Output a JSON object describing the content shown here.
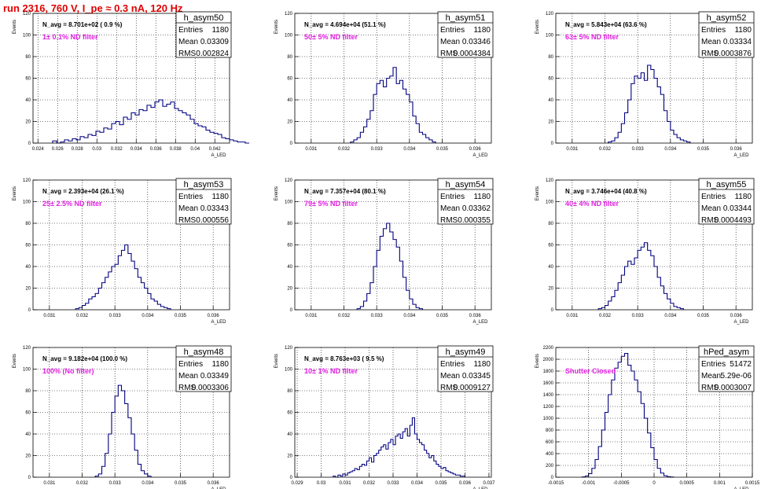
{
  "page_title": "run 2316,   760 V, I_pe ≈ 0.3 nA, 120 Hz",
  "colors": {
    "title": "#e00000",
    "hist_line": "#000080",
    "annotation": "#e020e0",
    "grid": "#000000",
    "frame": "#000000"
  },
  "stat_labels": {
    "entries": "Entries",
    "mean": "Mean",
    "rms": "RMS"
  },
  "chart_data": [
    {
      "type": "bar",
      "title": "h_asym50",
      "xlabel": "A_LED",
      "ylabel": "Events",
      "navg": "N_avg = 8.701e+02 ( 0.9 %)",
      "filter": "1± 0.1% ND filter",
      "entries": "1180",
      "mean": "0.03309",
      "rms": "0.002824",
      "xlim": [
        0.0235,
        0.0435
      ],
      "ylim": [
        0,
        120
      ],
      "grid": true,
      "xticks": [
        0.024,
        0.026,
        0.028,
        0.03,
        0.032,
        0.034,
        0.036,
        0.038,
        0.04,
        0.042
      ],
      "xticklabels": [
        "0.024",
        "0.026",
        "0.028",
        "0.03",
        "0.032",
        "0.034",
        "0.036",
        "0.038",
        "0.04",
        "0.042"
      ],
      "yticks": [
        0,
        20,
        40,
        60,
        80,
        100,
        120
      ],
      "yticklabels": [
        "0",
        "20",
        "40",
        "60",
        "80",
        "100",
        "120"
      ],
      "bin_start": 0.0255,
      "bin_width": 0.0004,
      "values": [
        2,
        0,
        1,
        3,
        2,
        4,
        3,
        6,
        5,
        8,
        7,
        11,
        10,
        14,
        13,
        18,
        20,
        17,
        24,
        22,
        28,
        26,
        31,
        30,
        35,
        33,
        38,
        40,
        34,
        36,
        38,
        32,
        30,
        28,
        26,
        22,
        18,
        16,
        15,
        12,
        10,
        9,
        8,
        5,
        4,
        3,
        2,
        1,
        1,
        0
      ]
    },
    {
      "type": "bar",
      "title": "h_asym51",
      "xlabel": "A_LED",
      "ylabel": "Events",
      "navg": "N_avg = 4.694e+04 (51.1 %)",
      "filter": "50± 5% ND filter",
      "entries": "1180",
      "mean": "0.03346",
      "rms": "0.0004384",
      "xlim": [
        0.0305,
        0.0365
      ],
      "ylim": [
        0,
        120
      ],
      "grid": true,
      "xticks": [
        0.031,
        0.032,
        0.033,
        0.034,
        0.035,
        0.036
      ],
      "xticklabels": [
        "0.031",
        "0.032",
        "0.033",
        "0.034",
        "0.035",
        "0.036"
      ],
      "yticks": [
        0,
        20,
        40,
        60,
        80,
        100,
        120
      ],
      "yticklabels": [
        "0",
        "20",
        "40",
        "60",
        "80",
        "100",
        "120"
      ],
      "bin_start": 0.0322,
      "bin_width": 0.0001,
      "values": [
        1,
        3,
        5,
        10,
        15,
        22,
        30,
        45,
        55,
        58,
        52,
        60,
        62,
        70,
        55,
        58,
        50,
        45,
        38,
        25,
        18,
        10,
        8,
        5,
        3,
        1
      ]
    },
    {
      "type": "bar",
      "title": "h_asym52",
      "xlabel": "A_LED",
      "ylabel": "Events",
      "navg": "N_avg = 5.843e+04 (63.6 %)",
      "filter": "63± 5% ND filter",
      "entries": "1180",
      "mean": "0.03334",
      "rms": "0.0003876",
      "xlim": [
        0.0305,
        0.0365
      ],
      "ylim": [
        0,
        120
      ],
      "grid": true,
      "xticks": [
        0.031,
        0.032,
        0.033,
        0.034,
        0.035,
        0.036
      ],
      "xticklabels": [
        "0.031",
        "0.032",
        "0.033",
        "0.034",
        "0.035",
        "0.036"
      ],
      "yticks": [
        0,
        20,
        40,
        60,
        80,
        100,
        120
      ],
      "yticklabels": [
        "0",
        "20",
        "40",
        "60",
        "80",
        "100",
        "120"
      ],
      "bin_start": 0.0321,
      "bin_width": 0.0001,
      "values": [
        1,
        2,
        5,
        10,
        18,
        28,
        40,
        55,
        62,
        60,
        65,
        58,
        72,
        68,
        60,
        52,
        45,
        30,
        20,
        12,
        8,
        5,
        3,
        2,
        1
      ]
    },
    {
      "type": "bar",
      "title": "h_asym53",
      "xlabel": "A_LED",
      "ylabel": "Events",
      "navg": "N_avg = 2.393e+04 (26.1 %)",
      "filter": "25± 2.5% ND filter",
      "entries": "1180",
      "mean": "0.03343",
      "rms": "0.000556",
      "xlim": [
        0.0305,
        0.0365
      ],
      "ylim": [
        0,
        120
      ],
      "grid": true,
      "xticks": [
        0.031,
        0.032,
        0.033,
        0.034,
        0.035,
        0.036
      ],
      "xticklabels": [
        "0.031",
        "0.032",
        "0.033",
        "0.034",
        "0.035",
        "0.036"
      ],
      "yticks": [
        0,
        20,
        40,
        60,
        80,
        100,
        120
      ],
      "yticklabels": [
        "0",
        "20",
        "40",
        "60",
        "80",
        "100",
        "120"
      ],
      "bin_start": 0.0318,
      "bin_width": 0.0001,
      "values": [
        1,
        2,
        4,
        6,
        10,
        12,
        15,
        20,
        25,
        30,
        35,
        40,
        42,
        50,
        55,
        60,
        52,
        45,
        38,
        30,
        25,
        20,
        15,
        10,
        8,
        5,
        3,
        2,
        1
      ]
    },
    {
      "type": "bar",
      "title": "h_asym54",
      "xlabel": "A_LED",
      "ylabel": "Events",
      "navg": "N_avg = 7.357e+04 (80.1 %)",
      "filter": "79± 5% ND filter",
      "entries": "1180",
      "mean": "0.03362",
      "rms": "0.000355",
      "xlim": [
        0.0305,
        0.0365
      ],
      "ylim": [
        0,
        120
      ],
      "grid": true,
      "xticks": [
        0.031,
        0.032,
        0.033,
        0.034,
        0.035,
        0.036
      ],
      "xticklabels": [
        "0.031",
        "0.032",
        "0.033",
        "0.034",
        "0.035",
        "0.036"
      ],
      "yticks": [
        0,
        20,
        40,
        60,
        80,
        100,
        120
      ],
      "yticklabels": [
        "0",
        "20",
        "40",
        "60",
        "80",
        "100",
        "120"
      ],
      "bin_start": 0.0324,
      "bin_width": 0.0001,
      "values": [
        1,
        3,
        8,
        15,
        25,
        40,
        55,
        68,
        75,
        80,
        72,
        65,
        58,
        45,
        30,
        18,
        10,
        5,
        2,
        1
      ]
    },
    {
      "type": "bar",
      "title": "h_asym55",
      "xlabel": "A_LED",
      "ylabel": "Events",
      "navg": "N_avg = 3.746e+04 (40.8 %)",
      "filter": "40± 4% ND filter",
      "entries": "1180",
      "mean": "0.03344",
      "rms": "0.0004493",
      "xlim": [
        0.0305,
        0.0365
      ],
      "ylim": [
        0,
        120
      ],
      "grid": true,
      "xticks": [
        0.031,
        0.032,
        0.033,
        0.034,
        0.035,
        0.036
      ],
      "xticklabels": [
        "0.031",
        "0.032",
        "0.033",
        "0.034",
        "0.035",
        "0.036"
      ],
      "yticks": [
        0,
        20,
        40,
        60,
        80,
        100,
        120
      ],
      "yticklabels": [
        "0",
        "20",
        "40",
        "60",
        "80",
        "100",
        "120"
      ],
      "bin_start": 0.0318,
      "bin_width": 0.0001,
      "values": [
        1,
        2,
        4,
        8,
        12,
        18,
        25,
        32,
        40,
        45,
        42,
        48,
        55,
        58,
        62,
        55,
        50,
        40,
        30,
        22,
        15,
        10,
        6,
        3,
        2,
        1
      ]
    },
    {
      "type": "bar",
      "title": "h_asym48",
      "xlabel": "A_LED",
      "ylabel": "Events",
      "navg": "N_avg = 9.182e+04 (100.0 %)",
      "filter": "100% (No filter)",
      "entries": "1180",
      "mean": "0.03349",
      "rms": "0.0003306",
      "xlim": [
        0.0305,
        0.0365
      ],
      "ylim": [
        0,
        120
      ],
      "grid": true,
      "xticks": [
        0.031,
        0.032,
        0.033,
        0.034,
        0.035,
        0.036
      ],
      "xticklabels": [
        "0.031",
        "0.032",
        "0.033",
        "0.034",
        "0.035",
        "0.036"
      ],
      "yticks": [
        0,
        20,
        40,
        60,
        80,
        100,
        120
      ],
      "yticklabels": [
        "0",
        "20",
        "40",
        "60",
        "80",
        "100",
        "120"
      ],
      "bin_start": 0.0324,
      "bin_width": 0.0001,
      "values": [
        1,
        3,
        10,
        22,
        40,
        60,
        75,
        85,
        80,
        68,
        55,
        40,
        25,
        12,
        6,
        3,
        1
      ]
    },
    {
      "type": "bar",
      "title": "h_asym49",
      "xlabel": "A_LED",
      "ylabel": "Events",
      "navg": "N_avg = 8.763e+03 ( 9.5 %)",
      "filter": "10± 1% ND filter",
      "entries": "1180",
      "mean": "0.03345",
      "rms": "0.0009127",
      "xlim": [
        0.0289,
        0.0371
      ],
      "ylim": [
        0,
        120
      ],
      "grid": true,
      "xticks": [
        0.029,
        0.03,
        0.031,
        0.032,
        0.033,
        0.034,
        0.035,
        0.036,
        0.037
      ],
      "xticklabels": [
        "0.029",
        "0.03",
        "0.031",
        "0.032",
        "0.033",
        "0.034",
        "0.035",
        "0.036",
        "0.037"
      ],
      "yticks": [
        0,
        20,
        40,
        60,
        80,
        100,
        120
      ],
      "yticklabels": [
        "0",
        "20",
        "40",
        "60",
        "80",
        "100",
        "120"
      ],
      "bin_start": 0.0305,
      "bin_width": 0.0001,
      "values": [
        1,
        0,
        2,
        1,
        3,
        2,
        4,
        5,
        6,
        8,
        7,
        10,
        12,
        11,
        15,
        18,
        14,
        20,
        22,
        25,
        28,
        30,
        26,
        32,
        35,
        30,
        38,
        40,
        36,
        42,
        45,
        38,
        48,
        55,
        40,
        35,
        32,
        30,
        25,
        22,
        18,
        20,
        15,
        12,
        10,
        8,
        9,
        6,
        5,
        4,
        3,
        2,
        2,
        1,
        1
      ]
    },
    {
      "type": "bar",
      "title": "hPed_asym",
      "xlabel": "A_LED",
      "ylabel": "Events",
      "navg": "",
      "filter": "Shutter Closed",
      "entries": "51472",
      "mean": "5.29e-06",
      "rms": "0.0003007",
      "xlim": [
        -0.0015,
        0.0015
      ],
      "ylim": [
        0,
        2200
      ],
      "grid": true,
      "xticks": [
        -0.0015,
        -0.001,
        -0.0005,
        0,
        0.0005,
        0.001,
        0.0015
      ],
      "xticklabels": [
        "-0.0015",
        "-0.001",
        "-0.0005",
        "0",
        "0.0005",
        "0.001",
        "0.0015"
      ],
      "yticks": [
        0,
        200,
        400,
        600,
        800,
        1000,
        1200,
        1400,
        1600,
        1800,
        2000,
        2200
      ],
      "yticklabels": [
        "0",
        "200",
        "400",
        "600",
        "800",
        "1000",
        "1200",
        "1400",
        "1600",
        "1800",
        "2000",
        "2200"
      ],
      "bin_start": -0.0011,
      "bin_width": 5e-05,
      "values": [
        5,
        20,
        60,
        150,
        300,
        520,
        800,
        1100,
        1400,
        1650,
        1850,
        1950,
        2050,
        2100,
        1900,
        1800,
        1650,
        1450,
        1250,
        1000,
        750,
        500,
        300,
        150,
        70,
        25,
        10,
        3
      ]
    }
  ]
}
